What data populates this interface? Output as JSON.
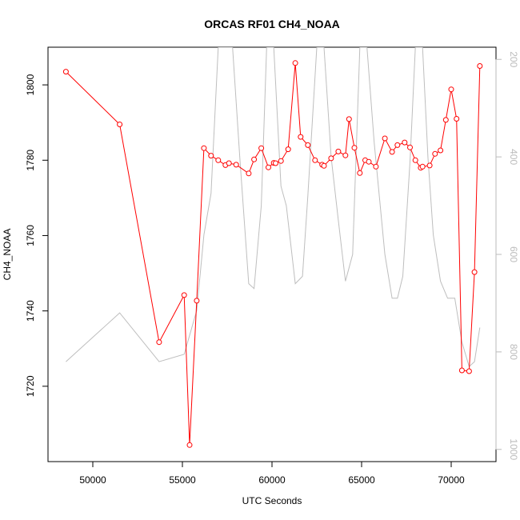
{
  "chart_data": {
    "type": "line",
    "title": "ORCAS RF01 CH4_NOAA",
    "xlabel": "UTC Seconds",
    "ylabel": "CH4_NOAA",
    "xlim": [
      47500,
      72500
    ],
    "ylim": [
      1700,
      1810
    ],
    "y2lim": [
      1025,
      175
    ],
    "xticks": [
      50000,
      55000,
      60000,
      65000,
      70000
    ],
    "yticks": [
      1720,
      1740,
      1760,
      1780,
      1800
    ],
    "y2ticks": [
      200,
      400,
      600,
      800,
      1000
    ],
    "grid": false,
    "colors": {
      "primary": "#ff0000",
      "secondary": "#bebebe"
    },
    "series": [
      {
        "axis": "left",
        "style": "line+points",
        "x": [
          48500,
          51500,
          53700,
          55100,
          55400,
          55800,
          56200,
          56600,
          57000,
          57400,
          57600,
          58000,
          58700,
          59000,
          59400,
          59800,
          60100,
          60200,
          60500,
          60900,
          61300,
          61600,
          62000,
          62400,
          62800,
          62900,
          63300,
          63700,
          64100,
          64300,
          64600,
          64900,
          65200,
          65400,
          65800,
          66300,
          66700,
          67000,
          67400,
          67700,
          68000,
          68300,
          68400,
          68800,
          69100,
          69400,
          69700,
          70000,
          70300,
          70600,
          71000,
          71300,
          71600
        ],
        "y": [
          1803.5,
          1789.5,
          1731.7,
          1744.2,
          1704.4,
          1742.7,
          1783.2,
          1781.2,
          1780.0,
          1778.7,
          1779.2,
          1778.8,
          1776.5,
          1780.2,
          1783.2,
          1778.1,
          1779.3,
          1779.2,
          1779.8,
          1782.9,
          1805.8,
          1786.2,
          1784.0,
          1780.0,
          1778.8,
          1778.5,
          1780.5,
          1782.3,
          1781.3,
          1790.9,
          1783.3,
          1776.6,
          1780.0,
          1779.6,
          1778.3,
          1785.8,
          1782.2,
          1784.0,
          1784.7,
          1783.4,
          1780.0,
          1778.0,
          1778.3,
          1778.6,
          1781.7,
          1782.6,
          1790.7,
          1798.8,
          1791.0,
          1724.2,
          1724.0,
          1750.3,
          1805.0
        ]
      },
      {
        "axis": "right",
        "style": "line",
        "x": [
          48500,
          51500,
          53700,
          55100,
          55800,
          56200,
          56600,
          57000,
          57400,
          57800,
          58200,
          58700,
          59000,
          59400,
          59700,
          60100,
          60500,
          60800,
          61300,
          61700,
          62000,
          62500,
          62900,
          63300,
          63700,
          64100,
          64500,
          64900,
          65300,
          65700,
          66300,
          66700,
          67000,
          67300,
          67700,
          68000,
          68400,
          68700,
          69000,
          69400,
          69800,
          70200,
          70600,
          71000,
          71300,
          71600
        ],
        "y": [
          820,
          720,
          820,
          805,
          715,
          560,
          475,
          175,
          175,
          175,
          400,
          660,
          670,
          500,
          175,
          175,
          460,
          500,
          660,
          645,
          480,
          175,
          175,
          400,
          530,
          655,
          600,
          175,
          175,
          370,
          600,
          690,
          690,
          645,
          410,
          175,
          175,
          400,
          560,
          655,
          690,
          690,
          780,
          830,
          820,
          750
        ]
      }
    ]
  }
}
